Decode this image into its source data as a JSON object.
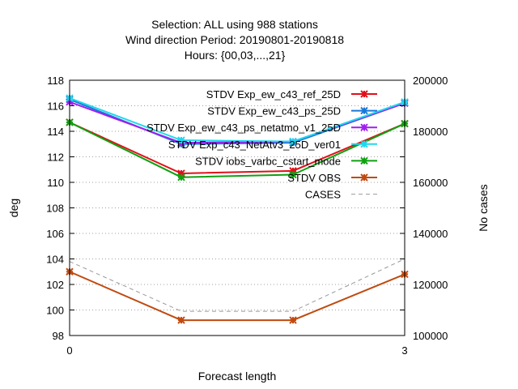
{
  "chart_data": {
    "type": "line",
    "title_lines": [
      "Selection: ALL using   988 stations",
      "Wind direction   Period: 20190801-20190818",
      "Hours: {00,03,...,21}"
    ],
    "xlabel": "Forecast length",
    "ylabel": "deg",
    "y2label": "No cases",
    "x": [
      0,
      1,
      2,
      3
    ],
    "xlim": [
      0,
      3
    ],
    "xticks": [
      0,
      3
    ],
    "ylim": [
      98,
      118
    ],
    "yticks": [
      98,
      100,
      102,
      104,
      106,
      108,
      110,
      112,
      114,
      116,
      118
    ],
    "y2lim": [
      100000,
      200000
    ],
    "y2ticks": [
      100000,
      120000,
      140000,
      160000,
      180000,
      200000
    ],
    "grid": true,
    "legend_position": "top-right",
    "series": [
      {
        "name": "STDV Exp_ew_c43_ref_25D",
        "color": "#e0101a",
        "values": [
          114.7,
          110.7,
          110.9,
          114.6
        ]
      },
      {
        "name": "STDV Exp_ew_c43_ps_25D",
        "color": "#1a78d6",
        "values": [
          116.5,
          113.0,
          113.1,
          116.2
        ]
      },
      {
        "name": "STDV Exp_ew_c43_ps_netatmo_v1_25D",
        "color": "#a020f0",
        "values": [
          116.3,
          113.1,
          113.2,
          116.2
        ]
      },
      {
        "name": "STDV Exp_c43_NetAtv3_25D_ver01",
        "color": "#20d8ee",
        "values": [
          116.6,
          113.3,
          113.2,
          116.3
        ]
      },
      {
        "name": "STDV iobs_varbc_cstart_mode",
        "color": "#10a010",
        "values": [
          114.7,
          110.4,
          110.6,
          114.6
        ]
      },
      {
        "name": "STDV OBS",
        "color": "#c04a10",
        "values": [
          103.0,
          99.2,
          99.2,
          102.8
        ]
      },
      {
        "name": "CASES",
        "color": "#999999",
        "dashed": true,
        "axis": "y2",
        "values": [
          129000,
          109500,
          109500,
          130000
        ]
      }
    ]
  }
}
